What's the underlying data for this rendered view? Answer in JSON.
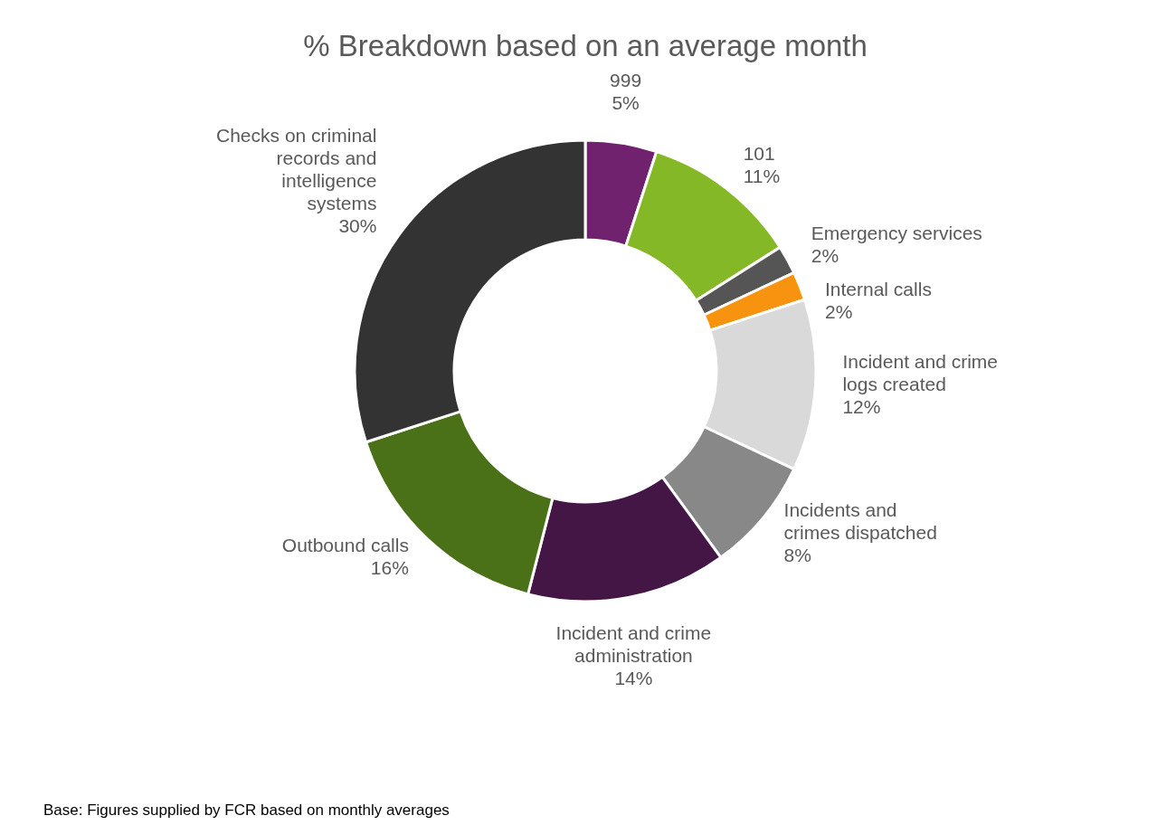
{
  "chart_data": {
    "type": "donut",
    "title": "% Breakdown based on an average month",
    "categories": [
      "999",
      "101",
      "Emergency services",
      "Internal calls",
      "Incident and crime logs created",
      "Incidents and crimes dispatched",
      "Incident and crime administration",
      "Outbound calls",
      "Checks on criminal records and intelligence systems"
    ],
    "values": [
      5,
      11,
      2,
      2,
      12,
      8,
      14,
      16,
      30
    ],
    "colors": [
      "#70226f",
      "#84b826",
      "#555555",
      "#f7930f",
      "#d9d9d9",
      "#888888",
      "#441646",
      "#4a7018",
      "#333333"
    ],
    "value_labels": [
      "5%",
      "11%",
      "2%",
      "2%",
      "12%",
      "8%",
      "14%",
      "16%",
      "30%"
    ],
    "annotations": [
      "Base: Figures supplied by FCR based on monthly averages"
    ]
  }
}
